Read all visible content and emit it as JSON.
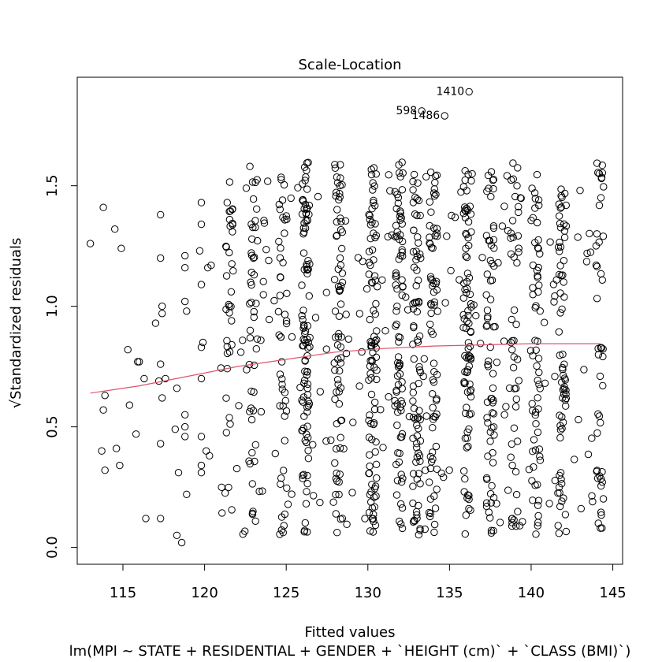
{
  "chart_data": {
    "type": "scatter",
    "title": "Scale-Location",
    "xlabel": "Fitted values",
    "ylabel": "√Standardized residuals",
    "subtitle": "lm(MPI ~ STATE + RESIDENTIAL + GENDER + `HEIGHT (cm)` + `CLASS (BMI)`)",
    "xlim": [
      112.2,
      145.6
    ],
    "ylim": [
      -0.07,
      1.95
    ],
    "x_ticks": [
      115,
      120,
      125,
      130,
      135,
      140,
      145
    ],
    "y_ticks": [
      0.0,
      0.5,
      1.0,
      1.5
    ],
    "x_tick_labels": [
      "115",
      "120",
      "125",
      "130",
      "135",
      "140",
      "145"
    ],
    "y_tick_labels": [
      "0.0",
      "0.5",
      "1.0",
      "1.5"
    ],
    "grid": false,
    "point_marker": "open-circle",
    "smooth_line": {
      "color": "#DF536B",
      "x": [
        113.0,
        116,
        119,
        122,
        125,
        128,
        131,
        134,
        137,
        140,
        144.2
      ],
      "y": [
        0.64,
        0.67,
        0.71,
        0.75,
        0.78,
        0.81,
        0.825,
        0.835,
        0.84,
        0.845,
        0.845
      ]
    },
    "labeled_points": [
      {
        "label": "1410",
        "x": 136.2,
        "y": 1.89
      },
      {
        "label": "598",
        "x": 133.3,
        "y": 1.81
      },
      {
        "label": "1486",
        "x": 134.7,
        "y": 1.79
      }
    ],
    "point_columns": [
      {
        "x": 126.2,
        "n": 95
      },
      {
        "x": 128.2,
        "n": 70
      },
      {
        "x": 130.3,
        "n": 90
      },
      {
        "x": 131.9,
        "n": 80
      },
      {
        "x": 133.0,
        "n": 75
      },
      {
        "x": 134.0,
        "n": 65
      },
      {
        "x": 136.1,
        "n": 85
      },
      {
        "x": 137.5,
        "n": 60
      },
      {
        "x": 139.0,
        "n": 40
      },
      {
        "x": 140.3,
        "n": 55
      },
      {
        "x": 141.9,
        "n": 65
      },
      {
        "x": 144.2,
        "n": 45
      },
      {
        "x": 124.8,
        "n": 40
      },
      {
        "x": 123.0,
        "n": 35
      },
      {
        "x": 121.5,
        "n": 30
      }
    ],
    "scattered_points": [
      [
        113.0,
        1.26
      ],
      [
        113.8,
        1.41
      ],
      [
        114.5,
        1.32
      ],
      [
        114.9,
        1.24
      ],
      [
        113.9,
        0.63
      ],
      [
        113.8,
        0.57
      ],
      [
        113.7,
        0.4
      ],
      [
        113.9,
        0.32
      ],
      [
        114.6,
        0.41
      ],
      [
        114.8,
        0.34
      ],
      [
        115.3,
        0.82
      ],
      [
        115.4,
        0.59
      ],
      [
        115.9,
        0.77
      ],
      [
        116.3,
        0.7
      ],
      [
        115.8,
        0.47
      ],
      [
        116.4,
        0.12
      ],
      [
        117.0,
        0.93
      ],
      [
        117.2,
        0.69
      ],
      [
        117.3,
        1.38
      ],
      [
        117.3,
        1.2
      ],
      [
        117.4,
        1.0
      ],
      [
        117.4,
        0.97
      ],
      [
        117.3,
        0.76
      ],
      [
        117.3,
        0.43
      ],
      [
        117.3,
        0.12
      ],
      [
        117.4,
        0.62
      ],
      [
        118.2,
        0.49
      ],
      [
        118.4,
        0.31
      ],
      [
        118.3,
        0.66
      ],
      [
        118.3,
        0.05
      ],
      [
        118.6,
        0.02
      ],
      [
        118.8,
        1.21
      ],
      [
        118.8,
        1.16
      ],
      [
        118.8,
        1.02
      ],
      [
        118.9,
        0.98
      ],
      [
        118.8,
        0.55
      ],
      [
        118.8,
        0.5
      ],
      [
        118.8,
        0.46
      ],
      [
        118.9,
        0.22
      ],
      [
        119.8,
        1.43
      ],
      [
        119.8,
        1.34
      ],
      [
        119.7,
        1.23
      ],
      [
        119.8,
        1.09
      ],
      [
        119.9,
        0.85
      ],
      [
        119.8,
        0.83
      ],
      [
        119.8,
        0.7
      ],
      [
        119.8,
        0.46
      ],
      [
        119.8,
        0.34
      ],
      [
        119.8,
        0.31
      ],
      [
        120.1,
        0.4
      ],
      [
        120.3,
        0.38
      ],
      [
        120.2,
        1.16
      ],
      [
        120.4,
        1.17
      ],
      [
        116.0,
        0.77
      ],
      [
        117.6,
        0.7
      ]
    ]
  }
}
